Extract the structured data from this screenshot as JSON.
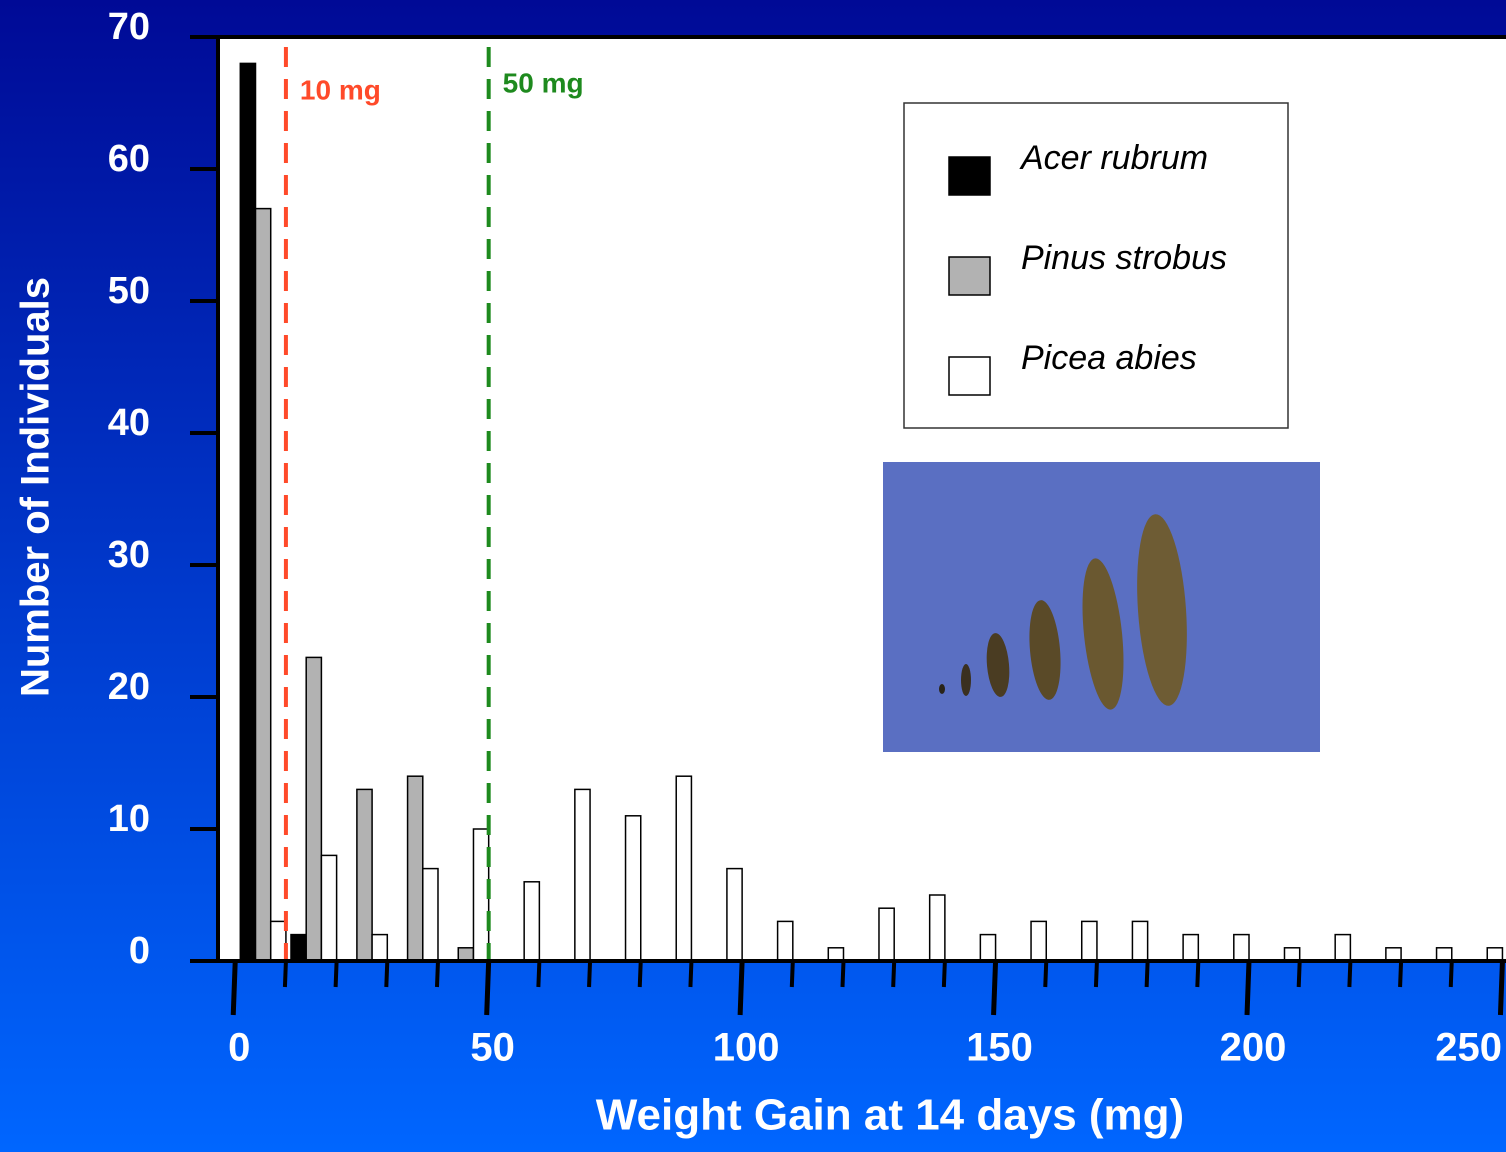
{
  "chart_data": {
    "type": "histogram",
    "x_label": "Weight Gain at 14 days (mg)",
    "y_label": "Number of Individuals",
    "bins": [
      0,
      10,
      20,
      30,
      40,
      50,
      60,
      70,
      80,
      90,
      100,
      110,
      120,
      130,
      140,
      150,
      160,
      170,
      180,
      190,
      200,
      210,
      220,
      230,
      240,
      250
    ],
    "series": [
      {
        "name": "Acer rubrum",
        "color": "#000000",
        "values": [
          68,
          2,
          0,
          0,
          0,
          0,
          0,
          0,
          0,
          0,
          0,
          0,
          0,
          0,
          0,
          0,
          0,
          0,
          0,
          0,
          0,
          0,
          0,
          0,
          0
        ]
      },
      {
        "name": "Pinus strobus",
        "color": "#b2b2b2",
        "values": [
          57,
          23,
          13,
          14,
          1,
          0,
          0,
          0,
          0,
          0,
          0,
          0,
          0,
          0,
          0,
          0,
          0,
          0,
          0,
          0,
          0,
          0,
          0,
          0,
          0
        ]
      },
      {
        "name": "Picea abies",
        "color": "#ffffff",
        "values": [
          3,
          8,
          2,
          7,
          10,
          6,
          13,
          11,
          14,
          7,
          3,
          1,
          4,
          5,
          2,
          3,
          3,
          3,
          2,
          2,
          1,
          2,
          1,
          1,
          1
        ]
      }
    ],
    "xlim": [
      -3.4,
      250.7
    ],
    "xticks": [
      0,
      50,
      100,
      150,
      200,
      250
    ],
    "xminorticks": [
      10,
      20,
      30,
      40,
      60,
      70,
      80,
      90,
      110,
      120,
      130,
      140,
      160,
      170,
      180,
      190,
      210,
      220,
      230,
      240
    ],
    "ylim": [
      0,
      70
    ],
    "yticks": [
      0,
      10,
      20,
      30,
      40,
      50,
      60,
      70
    ],
    "reference_lines": [
      {
        "x": 10,
        "label": "10 mg",
        "color": "#ff4a2a"
      },
      {
        "x": 50,
        "label": "50 mg",
        "color": "#1e8a1e"
      }
    ],
    "legend": "upper right"
  }
}
